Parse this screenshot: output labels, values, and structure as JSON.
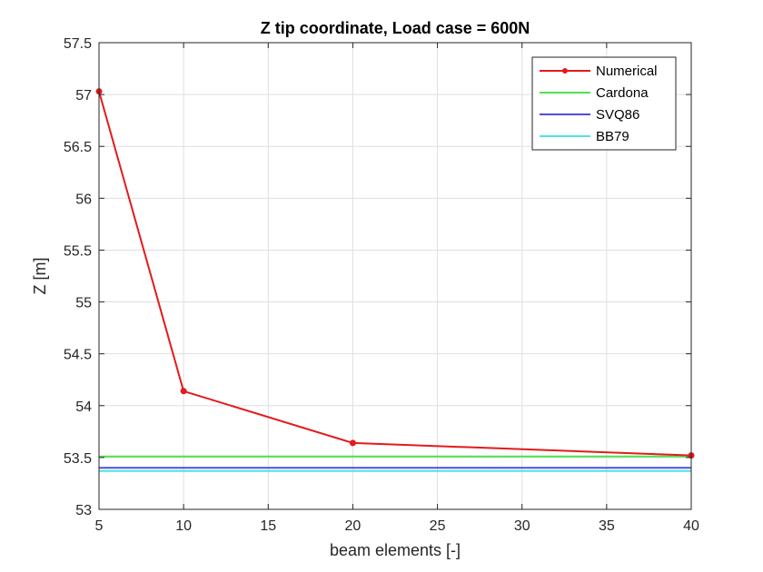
{
  "chart_data": {
    "type": "line",
    "title": "Z tip coordinate, Load case = 600N",
    "xlabel": "beam elements [-]",
    "ylabel": "Z [m]",
    "x_ticks": [
      5,
      10,
      15,
      20,
      25,
      30,
      35,
      40
    ],
    "y_ticks": [
      53,
      53.5,
      54,
      54.5,
      55,
      55.5,
      56,
      56.5,
      57,
      57.5
    ],
    "xlim": [
      5,
      40
    ],
    "ylim": [
      53,
      57.5
    ],
    "grid": true,
    "legend_position": "top-right",
    "series": [
      {
        "name": "Numerical",
        "color": "#e41a1c",
        "markers": true,
        "x": [
          5,
          10,
          20,
          40
        ],
        "y": [
          57.03,
          54.14,
          53.64,
          53.52
        ]
      },
      {
        "name": "Cardona",
        "color": "#4de34d",
        "markers": false,
        "x": [
          5,
          40
        ],
        "y": [
          53.51,
          53.51
        ]
      },
      {
        "name": "SVQ86",
        "color": "#4d4de3",
        "markers": false,
        "x": [
          5,
          40
        ],
        "y": [
          53.4,
          53.4
        ]
      },
      {
        "name": "BB79",
        "color": "#4de3e3",
        "markers": false,
        "x": [
          5,
          40
        ],
        "y": [
          53.37,
          53.37
        ]
      }
    ]
  }
}
